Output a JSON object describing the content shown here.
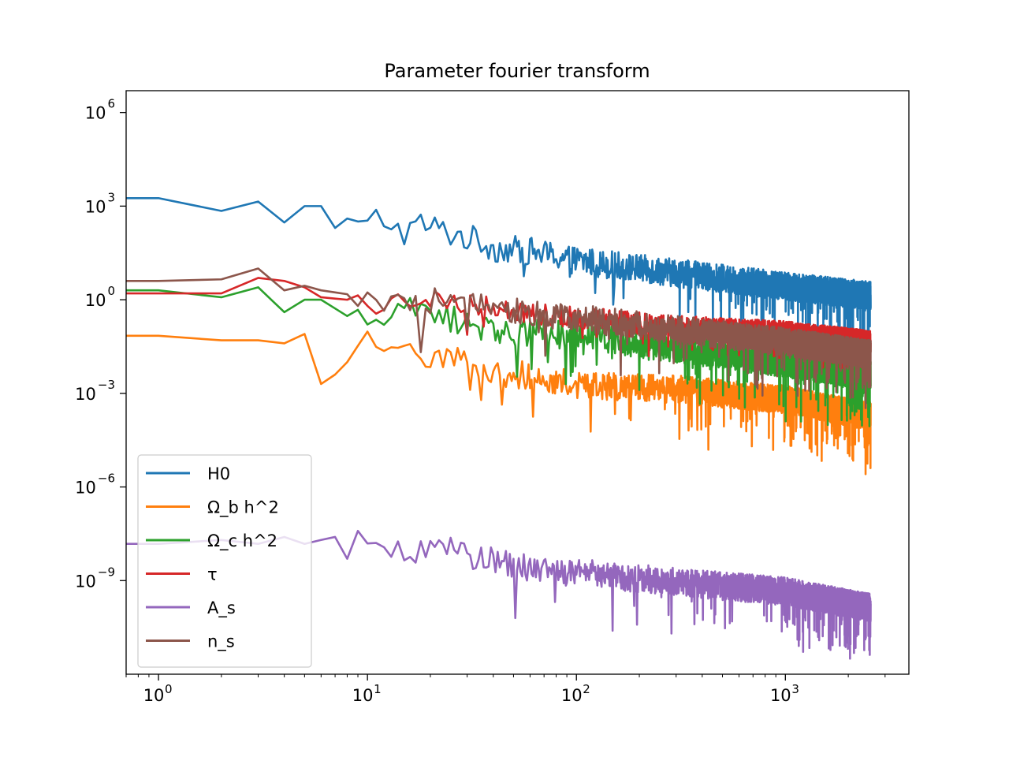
{
  "chart_data": {
    "type": "line",
    "title": "Parameter fourier transform",
    "xlabel": "",
    "ylabel": "",
    "xscale": "log",
    "yscale": "log",
    "xlim": [
      0.7,
      3900
    ],
    "ylim": [
      1e-12,
      5000000.0
    ],
    "grid": false,
    "legend_position": "lower left",
    "xticks": [
      {
        "value": 1,
        "base": "10",
        "exp": "0"
      },
      {
        "value": 10,
        "base": "10",
        "exp": "1"
      },
      {
        "value": 100,
        "base": "10",
        "exp": "2"
      },
      {
        "value": 1000,
        "base": "10",
        "exp": "3"
      }
    ],
    "yticks": [
      {
        "value": 1e-09,
        "base": "10",
        "exp": "−9"
      },
      {
        "value": 1e-06,
        "base": "10",
        "exp": "−6"
      },
      {
        "value": 0.001,
        "base": "10",
        "exp": "−3"
      },
      {
        "value": 1,
        "base": "10",
        "exp": "0"
      },
      {
        "value": 1000.0,
        "base": "10",
        "exp": "3"
      },
      {
        "value": 1000000.0,
        "base": "10",
        "exp": "6"
      }
    ],
    "x_max": 2560,
    "series": [
      {
        "name": "H0",
        "color": "#1f77b4",
        "anchors": [
          [
            0.7,
            1800
          ],
          [
            1,
            1800
          ],
          [
            2,
            700
          ],
          [
            3,
            1400
          ],
          [
            4,
            300
          ],
          [
            5,
            1000
          ],
          [
            6,
            1000
          ],
          [
            7,
            200
          ],
          [
            8,
            400
          ],
          [
            9,
            250
          ],
          [
            10,
            250
          ],
          [
            11,
            500
          ],
          [
            13,
            300
          ],
          [
            15,
            150
          ],
          [
            18,
            300
          ],
          [
            25,
            150
          ],
          [
            35,
            80
          ],
          [
            40,
            50
          ],
          [
            60,
            40
          ],
          [
            100,
            20
          ],
          [
            300,
            8
          ],
          [
            1000,
            3
          ],
          [
            2560,
            1.5
          ]
        ],
        "noise": 0.45,
        "dips": 0.9
      },
      {
        "name": "Ω_b h^2",
        "color": "#ff7f0e",
        "anchors": [
          [
            0.7,
            0.07
          ],
          [
            1,
            0.07
          ],
          [
            2,
            0.05
          ],
          [
            3,
            0.05
          ],
          [
            4,
            0.04
          ],
          [
            5,
            0.08
          ],
          [
            6,
            0.002
          ],
          [
            7,
            0.004
          ],
          [
            8,
            0.01
          ],
          [
            10,
            0.05
          ],
          [
            12,
            0.02
          ],
          [
            15,
            0.02
          ],
          [
            25,
            0.02
          ],
          [
            40,
            0.005
          ],
          [
            60,
            0.004
          ],
          [
            100,
            0.002
          ],
          [
            300,
            0.0015
          ],
          [
            1000,
            0.0007
          ],
          [
            2560,
            0.0002
          ]
        ],
        "noise": 0.45,
        "dips": 0.9
      },
      {
        "name": "Ω_c h^2",
        "color": "#2ca02c",
        "anchors": [
          [
            0.7,
            2.0
          ],
          [
            1,
            2.0
          ],
          [
            2,
            1.2
          ],
          [
            3,
            2.5
          ],
          [
            4,
            0.4
          ],
          [
            5,
            1.0
          ],
          [
            6,
            1.0
          ],
          [
            8,
            0.3
          ],
          [
            10,
            0.3
          ],
          [
            12,
            0.4
          ],
          [
            15,
            0.5
          ],
          [
            20,
            0.4
          ],
          [
            30,
            0.2
          ],
          [
            50,
            0.1
          ],
          [
            100,
            0.08
          ],
          [
            300,
            0.03
          ],
          [
            1000,
            0.01
          ],
          [
            2560,
            0.004
          ]
        ],
        "noise": 0.45,
        "dips": 0.9
      },
      {
        "name": "τ",
        "color": "#d62728",
        "anchors": [
          [
            0.7,
            1.6
          ],
          [
            1,
            1.6
          ],
          [
            2,
            1.6
          ],
          [
            3,
            5
          ],
          [
            4,
            4
          ],
          [
            5,
            2.5
          ],
          [
            6,
            1.2
          ],
          [
            8,
            1.0
          ],
          [
            10,
            0.8
          ],
          [
            12,
            0.6
          ],
          [
            15,
            1.2
          ],
          [
            25,
            1.0
          ],
          [
            40,
            0.6
          ],
          [
            60,
            0.4
          ],
          [
            100,
            0.3
          ],
          [
            300,
            0.15
          ],
          [
            1000,
            0.1
          ],
          [
            2560,
            0.05
          ]
        ],
        "noise": 0.35,
        "dips": 0.5
      },
      {
        "name": "A_s",
        "color": "#9467bd",
        "anchors": [
          [
            0.7,
            1.5e-08
          ],
          [
            1,
            1.5e-08
          ],
          [
            2,
            2e-08
          ],
          [
            3,
            1.5e-08
          ],
          [
            4,
            2.5e-08
          ],
          [
            5,
            1.5e-08
          ],
          [
            6,
            2e-08
          ],
          [
            7,
            2.5e-08
          ],
          [
            8,
            5e-09
          ],
          [
            9,
            2e-08
          ],
          [
            10,
            1.5e-08
          ],
          [
            12,
            8e-09
          ],
          [
            15,
            1e-08
          ],
          [
            20,
            1.2e-08
          ],
          [
            30,
            8e-09
          ],
          [
            50,
            3e-09
          ],
          [
            100,
            2e-09
          ],
          [
            300,
            1e-09
          ],
          [
            1000,
            5e-10
          ],
          [
            2560,
            1.5e-10
          ]
        ],
        "noise": 0.45,
        "dips": 0.9
      },
      {
        "name": "n_s",
        "color": "#8c564b",
        "anchors": [
          [
            0.7,
            4.0
          ],
          [
            1,
            4.0
          ],
          [
            2,
            4.5
          ],
          [
            3,
            10
          ],
          [
            4,
            2.0
          ],
          [
            5,
            2.8
          ],
          [
            6,
            2.0
          ],
          [
            8,
            1.5
          ],
          [
            10,
            1.2
          ],
          [
            15,
            0.6
          ],
          [
            20,
            1.0
          ],
          [
            30,
            0.8
          ],
          [
            50,
            0.5
          ],
          [
            100,
            0.3
          ],
          [
            300,
            0.12
          ],
          [
            1000,
            0.05
          ],
          [
            2560,
            0.02
          ]
        ],
        "noise": 0.45,
        "dips": 0.9
      }
    ]
  }
}
